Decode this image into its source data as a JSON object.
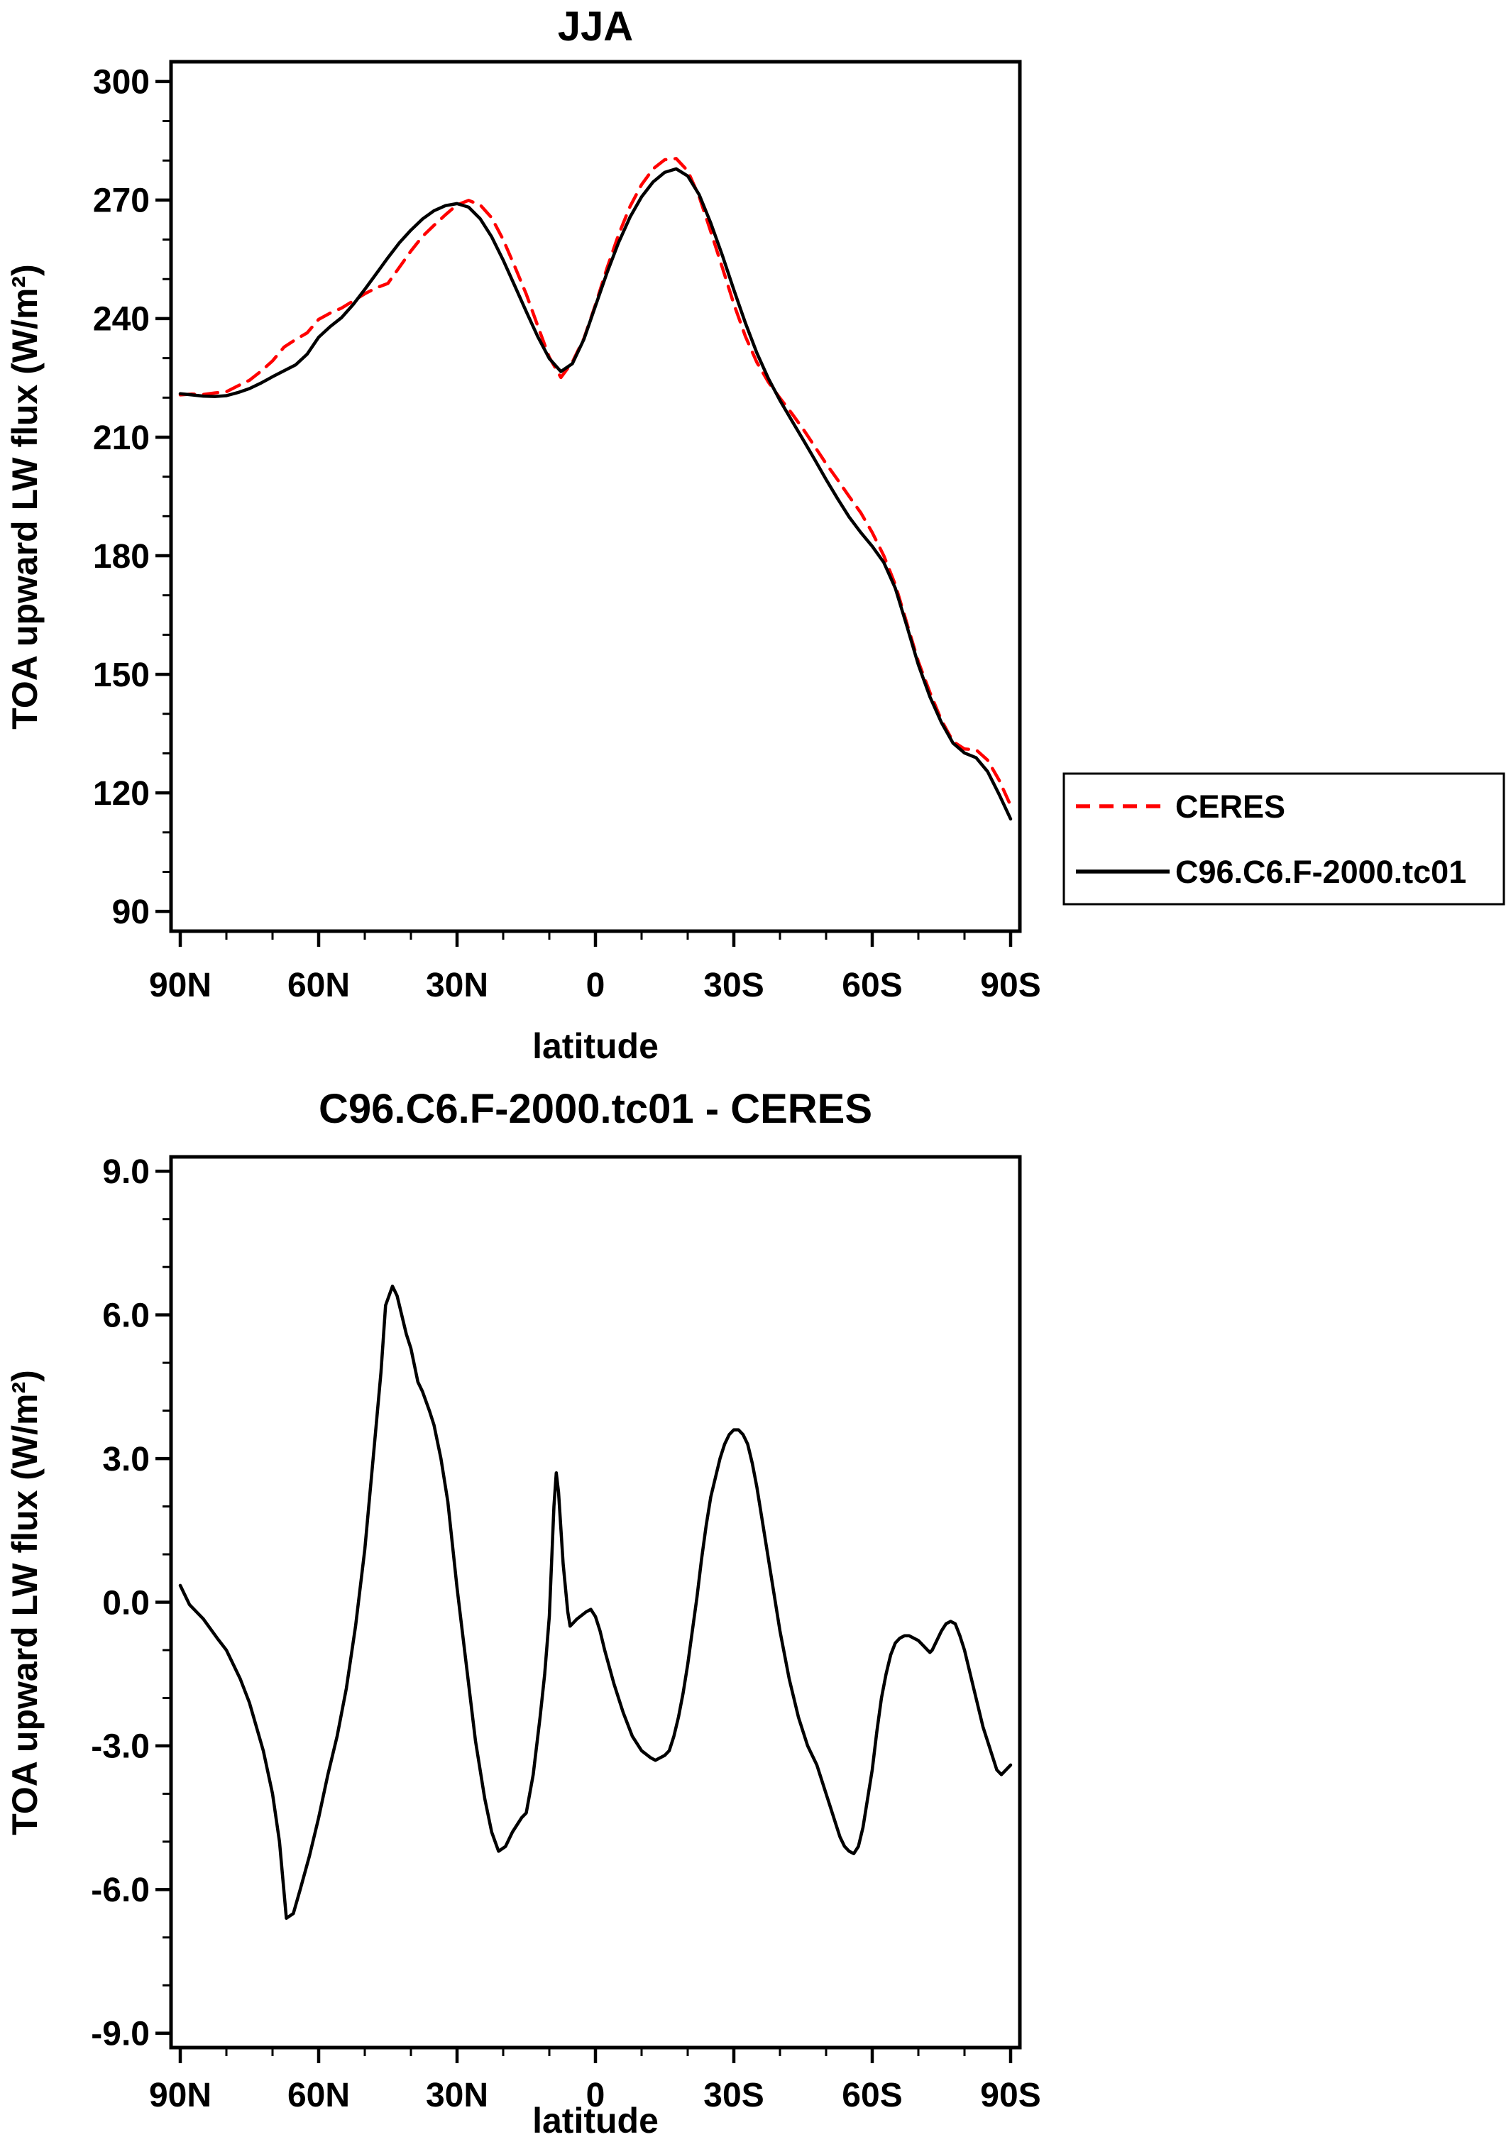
{
  "page": {
    "background": "#ffffff",
    "foreground": "#000000"
  },
  "colors": {
    "ceres": "#ff0000",
    "model": "#000000"
  },
  "chart_data": [
    {
      "id": "top",
      "type": "line",
      "title": "JJA",
      "xlabel": "latitude",
      "ylabel": "TOA upward LW flux (W/m²)",
      "grid": false,
      "xlim": [
        92,
        -92
      ],
      "ylim": [
        85,
        305
      ],
      "xticks": [
        90,
        60,
        30,
        0,
        -30,
        -60,
        -90
      ],
      "xtick_labels": [
        "90N",
        "60N",
        "30N",
        "0",
        "30S",
        "60S",
        "90S"
      ],
      "x_minor_step": 10,
      "yticks": [
        90,
        120,
        150,
        180,
        210,
        240,
        270,
        300
      ],
      "ytick_labels": [
        "90",
        "120",
        "150",
        "180",
        "210",
        "240",
        "270",
        "300"
      ],
      "y_minor_step": 10,
      "legend": {
        "position": "outside-right",
        "entries": [
          {
            "label": "CERES",
            "color": "#ff0000",
            "dash": "20 13"
          },
          {
            "label": "C96.C6.F-2000.tc01",
            "color": "#000000",
            "dash": null
          }
        ]
      },
      "x": [
        90,
        87.5,
        85,
        82.5,
        80,
        77.5,
        75,
        72.5,
        70,
        67.5,
        65,
        62.5,
        60,
        57.5,
        55,
        52.5,
        50,
        47.5,
        45,
        42.5,
        40,
        37.5,
        35,
        32.5,
        30,
        27.5,
        25,
        22.5,
        20,
        17.5,
        15,
        12.5,
        10,
        7.5,
        5,
        2.5,
        0,
        -2.5,
        -5,
        -7.5,
        -10,
        -12.5,
        -15,
        -17.5,
        -20,
        -22.5,
        -25,
        -27.5,
        -30,
        -32.5,
        -35,
        -37.5,
        -40,
        -42.5,
        -45,
        -47.5,
        -50,
        -52.5,
        -55,
        -57.5,
        -60,
        -62.5,
        -65,
        -67.5,
        -70,
        -72.5,
        -75,
        -77.5,
        -80,
        -82.5,
        -85,
        -87.5,
        -90
      ],
      "series": [
        {
          "name": "CERES",
          "color": "#ff0000",
          "dash": "20 13",
          "y": [
            220.7,
            220.9,
            220.8,
            221.2,
            221.5,
            223.0,
            224.4,
            226.7,
            229.3,
            232.8,
            234.7,
            236.4,
            239.8,
            241.4,
            242.7,
            244.5,
            246.3,
            247.8,
            248.9,
            253.0,
            257.1,
            260.8,
            263.6,
            266.3,
            268.8,
            269.9,
            268.8,
            265.5,
            260.0,
            253.2,
            246.2,
            238.1,
            230.2,
            225.1,
            229.0,
            235.0,
            243.5,
            252.8,
            261.2,
            268.4,
            273.9,
            277.9,
            280.2,
            280.5,
            277.4,
            270.8,
            262.0,
            252.9,
            243.7,
            235.5,
            228.9,
            223.9,
            219.9,
            216.1,
            212.1,
            207.7,
            203.3,
            199.2,
            195.0,
            190.9,
            185.9,
            180.0,
            172.7,
            162.9,
            153.2,
            145.4,
            138.4,
            133.0,
            131.1,
            130.9,
            128.3,
            123.2,
            116.8
          ]
        },
        {
          "name": "C96.C6.F-2000.tc01",
          "color": "#000000",
          "dash": null,
          "y": [
            221.0,
            220.7,
            220.4,
            220.3,
            220.5,
            221.3,
            222.3,
            223.7,
            225.3,
            226.8,
            228.3,
            231.0,
            235.3,
            238.0,
            240.3,
            243.6,
            247.4,
            251.4,
            255.4,
            259.2,
            262.4,
            265.2,
            267.3,
            268.6,
            269.1,
            268.2,
            265.3,
            260.7,
            254.8,
            248.3,
            241.8,
            235.4,
            229.9,
            226.6,
            228.6,
            234.8,
            243.2,
            251.6,
            259.2,
            265.7,
            270.8,
            274.6,
            277.0,
            277.9,
            276.1,
            271.3,
            264.2,
            256.0,
            247.3,
            238.9,
            231.3,
            224.8,
            219.3,
            214.3,
            209.4,
            204.4,
            199.3,
            194.4,
            189.8,
            185.9,
            182.4,
            178.3,
            171.8,
            162.2,
            152.4,
            144.3,
            137.8,
            132.6,
            130.1,
            128.9,
            125.4,
            119.6,
            113.4
          ]
        }
      ]
    },
    {
      "id": "bottom",
      "type": "line",
      "title": "C96.C6.F-2000.tc01 - CERES",
      "xlabel": "latitude",
      "ylabel": "TOA upward LW flux (W/m²)",
      "grid": false,
      "xlim": [
        92,
        -92
      ],
      "ylim": [
        -9.3,
        9.3
      ],
      "xticks": [
        90,
        60,
        30,
        0,
        -30,
        -60,
        -90
      ],
      "xtick_labels": [
        "90N",
        "60N",
        "30N",
        "0",
        "30S",
        "60S",
        "90S"
      ],
      "x_minor_step": 10,
      "yticks": [
        -9,
        -6,
        -3,
        0,
        3,
        6,
        9
      ],
      "ytick_labels": [
        "-9.0",
        "-6.0",
        "-3.0",
        "0.0",
        "3.0",
        "6.0",
        "9.0"
      ],
      "y_minor_step": 1,
      "x": [
        90,
        88,
        85,
        82,
        80,
        77,
        75,
        72,
        70,
        68.5,
        67,
        65.5,
        64,
        62,
        60,
        58,
        56,
        54,
        52,
        50,
        48,
        46.5,
        45.5,
        44,
        43,
        42,
        41,
        40,
        38.5,
        37.5,
        36,
        35,
        33.5,
        32,
        30,
        28,
        26,
        24,
        22.5,
        21,
        19.5,
        18,
        16,
        15,
        13.5,
        12,
        11,
        10,
        9,
        8.5,
        8,
        7,
        6,
        5.5,
        5,
        4,
        2,
        1,
        0,
        -1,
        -2,
        -4,
        -6,
        -8,
        -10,
        -12,
        -13,
        -14,
        -15,
        -16,
        -17,
        -18,
        -19,
        -20,
        -21,
        -22,
        -23,
        -24,
        -25,
        -26,
        -27,
        -28,
        -29,
        -30,
        -31,
        -32,
        -33,
        -34,
        -35,
        -36,
        -37,
        -38,
        -39,
        -40,
        -41,
        -42,
        -43,
        -44,
        -45,
        -46,
        -47,
        -48,
        -49,
        -50,
        -51,
        -52,
        -53,
        -54,
        -55,
        -56,
        -57,
        -58,
        -59,
        -60,
        -61,
        -62,
        -63,
        -64,
        -65,
        -66,
        -67,
        -68,
        -69,
        -70,
        -71,
        -72,
        -72.5,
        -73,
        -74,
        -75,
        -76,
        -77,
        -78,
        -79,
        -80,
        -81,
        -82,
        -83,
        -84,
        -85,
        -86,
        -87,
        -88,
        -89,
        -90
      ],
      "series": [
        {
          "name": "C96.C6.F-2000.tc01 - CERES",
          "color": "#000000",
          "dash": null,
          "y": [
            0.35,
            -0.05,
            -0.35,
            -0.75,
            -1.0,
            -1.6,
            -2.1,
            -3.1,
            -4.0,
            -5.0,
            -6.6,
            -6.5,
            -6.0,
            -5.3,
            -4.5,
            -3.6,
            -2.8,
            -1.8,
            -0.5,
            1.1,
            3.2,
            4.8,
            6.2,
            6.6,
            6.4,
            6.0,
            5.6,
            5.3,
            4.6,
            4.4,
            4.0,
            3.7,
            3.0,
            2.1,
            0.3,
            -1.3,
            -2.9,
            -4.1,
            -4.8,
            -5.2,
            -5.1,
            -4.8,
            -4.5,
            -4.4,
            -3.6,
            -2.4,
            -1.5,
            -0.3,
            2.0,
            2.7,
            2.3,
            0.8,
            -0.2,
            -0.5,
            -0.45,
            -0.35,
            -0.2,
            -0.15,
            -0.3,
            -0.6,
            -1.0,
            -1.7,
            -2.3,
            -2.8,
            -3.1,
            -3.25,
            -3.3,
            -3.25,
            -3.2,
            -3.1,
            -2.8,
            -2.4,
            -1.9,
            -1.3,
            -0.6,
            0.1,
            0.9,
            1.6,
            2.2,
            2.6,
            3.0,
            3.3,
            3.5,
            3.6,
            3.6,
            3.5,
            3.3,
            2.9,
            2.4,
            1.8,
            1.2,
            0.6,
            0.0,
            -0.6,
            -1.1,
            -1.6,
            -2.0,
            -2.4,
            -2.7,
            -3.0,
            -3.2,
            -3.4,
            -3.7,
            -4.0,
            -4.3,
            -4.6,
            -4.9,
            -5.1,
            -5.2,
            -5.25,
            -5.1,
            -4.7,
            -4.1,
            -3.5,
            -2.7,
            -2.0,
            -1.5,
            -1.1,
            -0.85,
            -0.75,
            -0.7,
            -0.7,
            -0.75,
            -0.8,
            -0.9,
            -1.0,
            -1.05,
            -1.0,
            -0.8,
            -0.6,
            -0.45,
            -0.4,
            -0.45,
            -0.7,
            -1.0,
            -1.4,
            -1.8,
            -2.2,
            -2.6,
            -2.9,
            -3.2,
            -3.5,
            -3.6,
            -3.5,
            -3.4
          ]
        }
      ]
    }
  ]
}
